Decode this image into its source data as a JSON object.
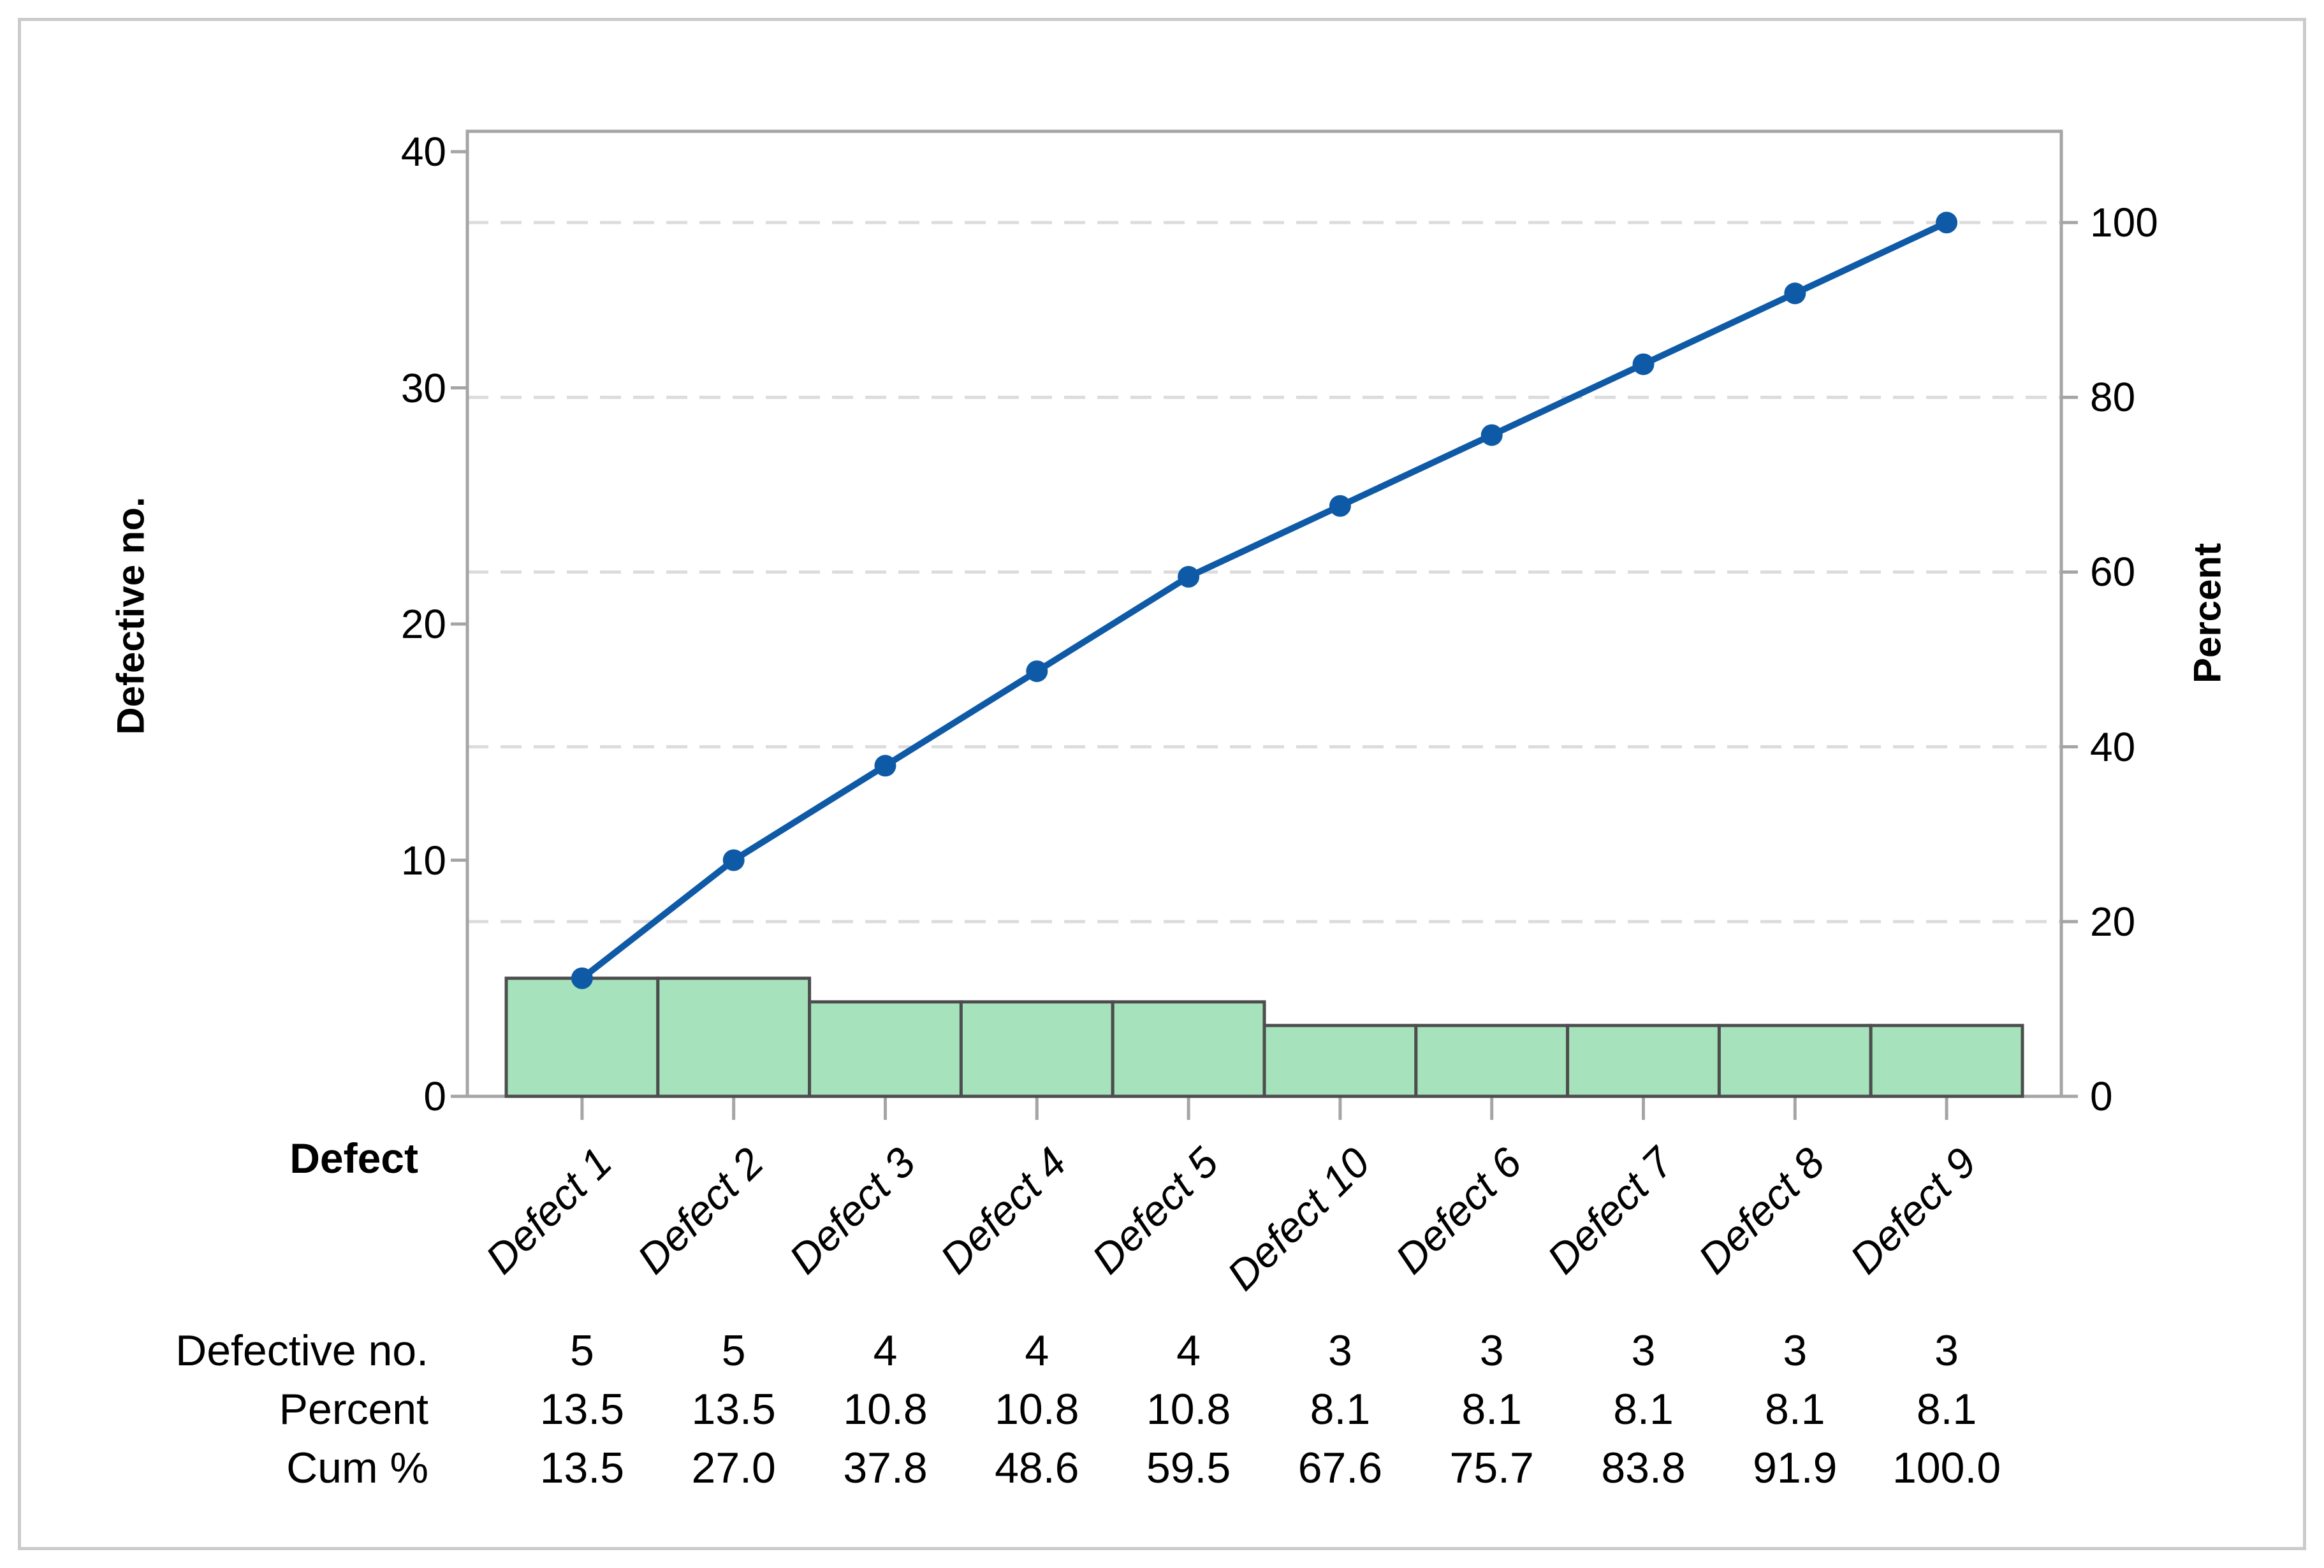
{
  "chart_data": {
    "type": "bar",
    "subtype": "pareto-with-cumulative-line",
    "title": "",
    "categories": [
      "Defect 1",
      "Defect 2",
      "Defect 3",
      "Defect 4",
      "Defect 5",
      "Defect 10",
      "Defect 6",
      "Defect 7",
      "Defect 8",
      "Defect 9"
    ],
    "series": [
      {
        "name": "Defective no.",
        "type": "bar",
        "values": [
          5,
          5,
          4,
          4,
          4,
          3,
          3,
          3,
          3,
          3
        ]
      },
      {
        "name": "Percent",
        "type": "values-only",
        "values": [
          13.5,
          13.5,
          10.8,
          10.8,
          10.8,
          8.1,
          8.1,
          8.1,
          8.1,
          8.1
        ]
      },
      {
        "name": "Cum %",
        "type": "line",
        "values": [
          13.5,
          27.0,
          37.8,
          48.6,
          59.5,
          67.6,
          75.7,
          83.8,
          91.9,
          100.0
        ]
      }
    ],
    "left_axis": {
      "label": "Defective no.",
      "min": 0,
      "max": 40,
      "ticks": [
        0,
        10,
        20,
        30,
        40
      ]
    },
    "right_axis": {
      "label": "Percent",
      "min": 0,
      "ticks": [
        0,
        20,
        40,
        60,
        80,
        100
      ],
      "count_at_100_percent": 37
    },
    "x_axis": {
      "label": "Defect"
    },
    "legend": "none",
    "grid": {
      "style": "dashed horizontal",
      "at_percent": [
        20,
        40,
        60,
        80,
        100
      ]
    },
    "colors": {
      "bar_fill": "#A6E3BC",
      "bar_border": "#4D4D4D",
      "line": "#0F5AA6",
      "marker": "#0F5AA6",
      "frame": "#A5A5A5",
      "grid": "#DCDCDC",
      "text": "#000000",
      "figure_border": "#CBCBCB"
    }
  },
  "table": {
    "rows": [
      {
        "label": "Defective no.",
        "values": [
          "5",
          "5",
          "4",
          "4",
          "4",
          "3",
          "3",
          "3",
          "3",
          "3"
        ]
      },
      {
        "label": "Percent",
        "values": [
          "13.5",
          "13.5",
          "10.8",
          "10.8",
          "10.8",
          "8.1",
          "8.1",
          "8.1",
          "8.1",
          "8.1"
        ]
      },
      {
        "label": "Cum %",
        "values": [
          "13.5",
          "27.0",
          "37.8",
          "48.6",
          "59.5",
          "67.6",
          "75.7",
          "83.8",
          "91.9",
          "100.0"
        ]
      }
    ]
  }
}
